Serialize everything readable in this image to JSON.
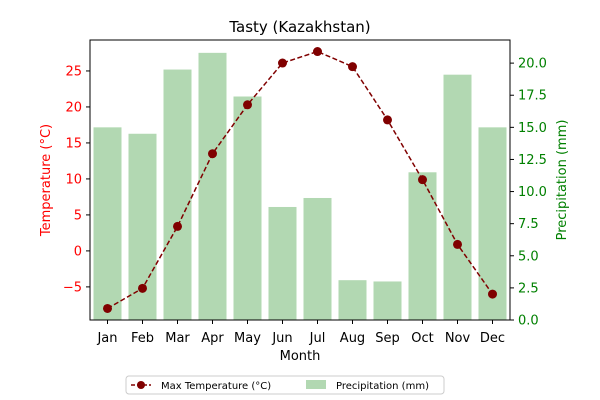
{
  "chart_data": {
    "type": "bar+line",
    "title": "Tasty (Kazakhstan)",
    "xlabel": "Month",
    "categories": [
      "Jan",
      "Feb",
      "Mar",
      "Apr",
      "May",
      "Jun",
      "Jul",
      "Aug",
      "Sep",
      "Oct",
      "Nov",
      "Dec"
    ],
    "left_axis": {
      "label": "Temperature (°C)",
      "color": "#ff0000",
      "ylim": [
        -9.6,
        29.3
      ],
      "ticks": [
        -5,
        0,
        5,
        10,
        15,
        20,
        25
      ],
      "tick_labels": [
        "−5",
        "0",
        "5",
        "10",
        "15",
        "20",
        "25"
      ]
    },
    "right_axis": {
      "label": "Precipitation (mm)",
      "color": "#008000",
      "ylim": [
        0,
        21.8
      ],
      "ticks": [
        0,
        2.5,
        5,
        7.5,
        10,
        12.5,
        15,
        17.5,
        20
      ],
      "tick_labels": [
        "0.0",
        "2.5",
        "5.0",
        "7.5",
        "10.0",
        "12.5",
        "15.0",
        "17.5",
        "20.0"
      ]
    },
    "series": [
      {
        "name": "Max Temperature (°C)",
        "kind": "line",
        "axis": "left",
        "color": "#800000",
        "values": [
          -8.0,
          -5.2,
          3.4,
          13.5,
          20.3,
          26.1,
          27.7,
          25.6,
          18.2,
          9.9,
          0.9,
          -6.0
        ]
      },
      {
        "name": "Precipitation (mm)",
        "kind": "bar",
        "axis": "right",
        "color": "#b2d8b2",
        "values": [
          15.0,
          14.5,
          19.5,
          20.8,
          17.4,
          8.8,
          9.5,
          3.1,
          3.0,
          11.5,
          19.1,
          15.0
        ]
      }
    ],
    "legend": {
      "placement": "bottom-center",
      "entries": [
        "Max Temperature (°C)",
        "Precipitation (mm)"
      ]
    }
  }
}
